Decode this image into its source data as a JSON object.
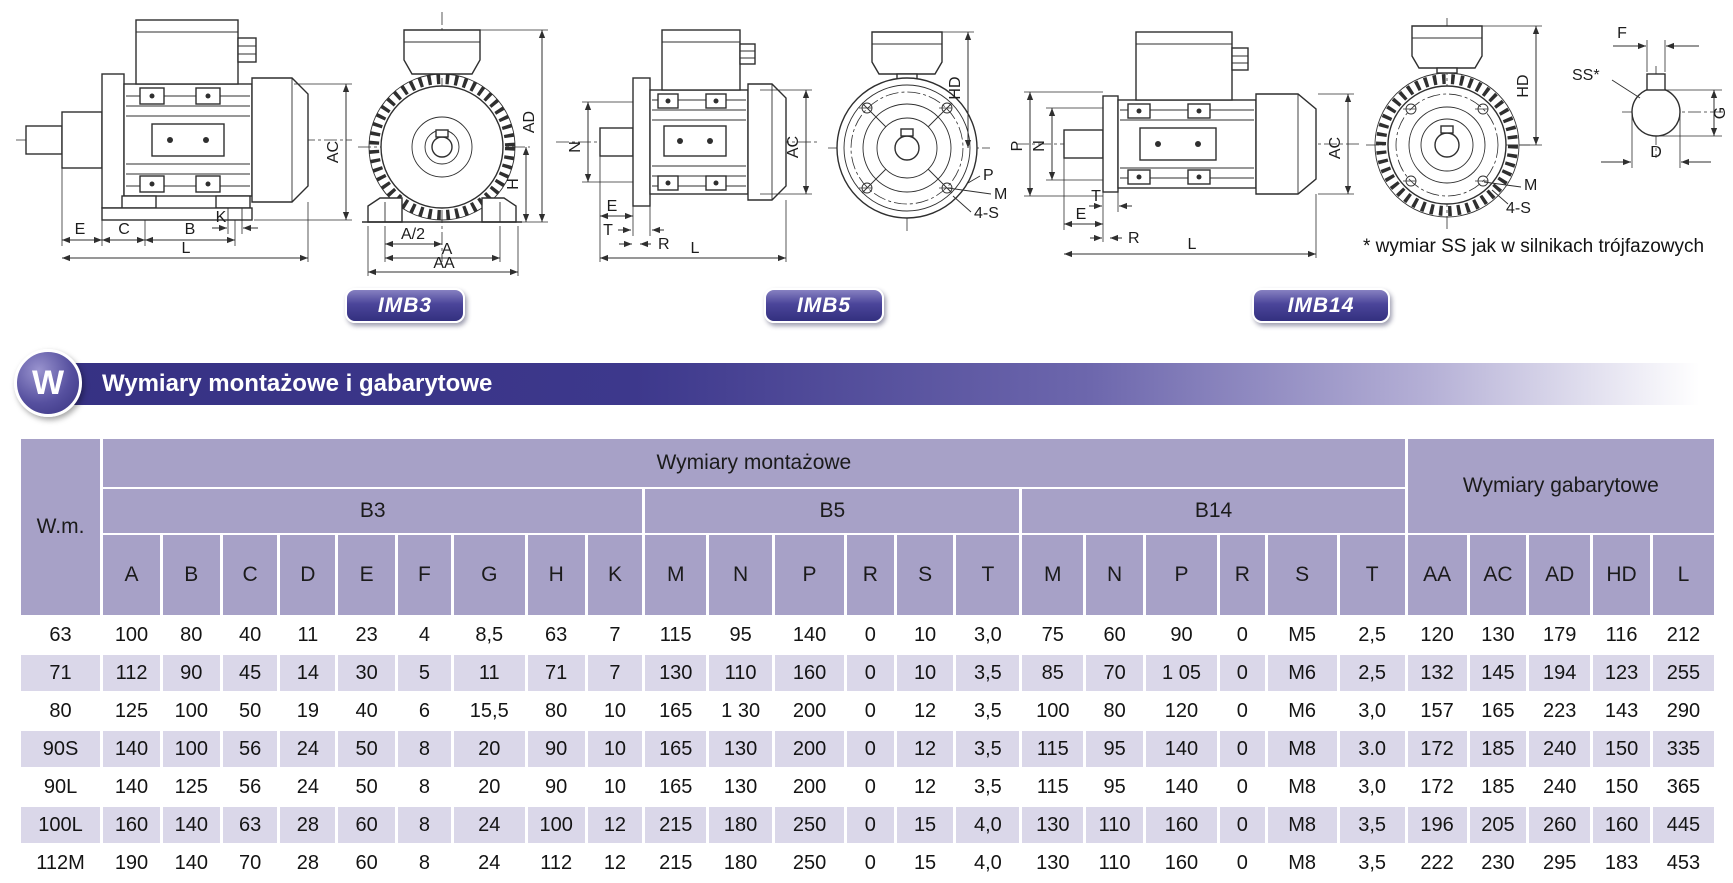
{
  "section_header": {
    "badge_letter": "W",
    "title": "Wymiary montażowe i gabarytowe"
  },
  "figures": {
    "badges": [
      {
        "label": "IMB3"
      },
      {
        "label": "IMB5"
      },
      {
        "label": "IMB14"
      }
    ],
    "footnote": "* wymiar SS jak w silnikach trójfazowych",
    "dim_labels": {
      "A": "A",
      "A2": "A/2",
      "AA": "AA",
      "AC": "AC",
      "AD": "AD",
      "B": "B",
      "C": "C",
      "D": "D",
      "E": "E",
      "F": "F",
      "G": "G",
      "H": "H",
      "HD": "HD",
      "K": "K",
      "L": "L",
      "M": "M",
      "N": "N",
      "P": "P",
      "R": "R",
      "S4": "4-S",
      "SS": "SS*",
      "T": "T"
    }
  },
  "table": {
    "corner_label": "W.m.",
    "group_mounting": "Wymiary montażowe",
    "group_overall": "Wymiary gabarytowe",
    "subgroups": [
      {
        "label": "B3"
      },
      {
        "label": "B5"
      },
      {
        "label": "B14"
      }
    ],
    "columns": [
      "A",
      "B",
      "C",
      "D",
      "E",
      "F",
      "G",
      "H",
      "K",
      "M",
      "N",
      "P",
      "R",
      "S",
      "T",
      "M",
      "N",
      "P",
      "R",
      "S",
      "T",
      "AA",
      "AC",
      "AD",
      "HD",
      "L"
    ],
    "rows": [
      {
        "wm": "63",
        "values": [
          "100",
          "80",
          "40",
          "11",
          "23",
          "4",
          "8,5",
          "63",
          "7",
          "115",
          "95",
          "140",
          "0",
          "10",
          "3,0",
          "75",
          "60",
          "90",
          "0",
          "M5",
          "2,5",
          "120",
          "130",
          "179",
          "116",
          "212"
        ]
      },
      {
        "wm": "71",
        "values": [
          "112",
          "90",
          "45",
          "14",
          "30",
          "5",
          "11",
          "71",
          "7",
          "130",
          "110",
          "160",
          "0",
          "10",
          "3,5",
          "85",
          "70",
          "1 05",
          "0",
          "M6",
          "2,5",
          "132",
          "145",
          "194",
          "123",
          "255"
        ]
      },
      {
        "wm": "80",
        "values": [
          "125",
          "100",
          "50",
          "19",
          "40",
          "6",
          "15,5",
          "80",
          "10",
          "165",
          "1 30",
          "200",
          "0",
          "12",
          "3,5",
          "100",
          "80",
          "120",
          "0",
          "M6",
          "3,0",
          "157",
          "165",
          "223",
          "143",
          "290"
        ]
      },
      {
        "wm": "90S",
        "values": [
          "140",
          "100",
          "56",
          "24",
          "50",
          "8",
          "20",
          "90",
          "10",
          "165",
          "130",
          "200",
          "0",
          "12",
          "3,5",
          "115",
          "95",
          "140",
          "0",
          "M8",
          "3.0",
          "172",
          "185",
          "240",
          "150",
          "335"
        ]
      },
      {
        "wm": "90L",
        "values": [
          "140",
          "125",
          "56",
          "24",
          "50",
          "8",
          "20",
          "90",
          "10",
          "165",
          "130",
          "200",
          "0",
          "12",
          "3,5",
          "115",
          "95",
          "140",
          "0",
          "M8",
          "3,0",
          "172",
          "185",
          "240",
          "150",
          "365"
        ]
      },
      {
        "wm": "100L",
        "values": [
          "160",
          "140",
          "63",
          "28",
          "60",
          "8",
          "24",
          "100",
          "12",
          "215",
          "180",
          "250",
          "0",
          "15",
          "4,0",
          "130",
          "110",
          "160",
          "0",
          "M8",
          "3,5",
          "196",
          "205",
          "260",
          "160",
          "445"
        ]
      },
      {
        "wm": "112M",
        "values": [
          "190",
          "140",
          "70",
          "28",
          "60",
          "8",
          "24",
          "112",
          "12",
          "215",
          "180",
          "250",
          "0",
          "15",
          "4,0",
          "130",
          "110",
          "160",
          "0",
          "M8",
          "3,5",
          "222",
          "230",
          "295",
          "183",
          "453"
        ]
      }
    ],
    "colors": {
      "header_bg": "#a7a1c7",
      "row_alt_bg": "#dad7e9",
      "band_dark": "#363183",
      "badge_bg": "#33307f",
      "header_text": "#ffffff"
    }
  }
}
